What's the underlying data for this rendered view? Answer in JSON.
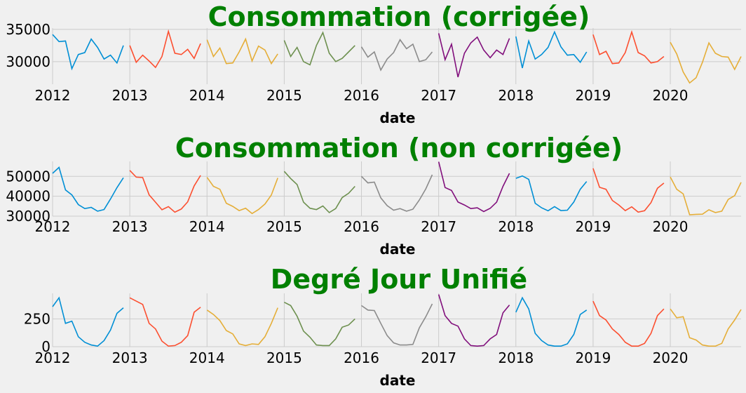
{
  "chart_data": [
    {
      "type": "line",
      "title": "Consommation (corrigée)",
      "xlabel": "date",
      "ylabel": "",
      "x_ticks": [
        "2012",
        "2013",
        "2014",
        "2015",
        "2016",
        "2017",
        "2018",
        "2019",
        "2020"
      ],
      "y_ticks": [
        30000,
        35000
      ],
      "ylim": [
        26500,
        35200
      ],
      "series": [
        {
          "year": "2012",
          "color": "#008fd5",
          "values": [
            34200,
            33100,
            33200,
            28900,
            31100,
            31400,
            33500,
            32200,
            30400,
            31000,
            29800,
            32500
          ]
        },
        {
          "year": "2013",
          "color": "#fc4f30",
          "values": [
            32500,
            29900,
            31000,
            30100,
            29100,
            30800,
            34700,
            31300,
            31100,
            31900,
            30500,
            32800
          ]
        },
        {
          "year": "2014",
          "color": "#e5ae38",
          "values": [
            33400,
            30800,
            32100,
            29700,
            29800,
            31500,
            33500,
            30100,
            32400,
            31800,
            29700,
            31200
          ]
        },
        {
          "year": "2015",
          "color": "#6d904f",
          "values": [
            33300,
            30800,
            32200,
            30000,
            29500,
            32500,
            34500,
            31300,
            30000,
            30500,
            31500,
            32500
          ]
        },
        {
          "year": "2016",
          "color": "#8b8b8b",
          "values": [
            32300,
            30700,
            31500,
            28700,
            30400,
            31400,
            33400,
            32000,
            32700,
            30000,
            30300,
            31500
          ]
        },
        {
          "year": "2017",
          "color": "#810f7c",
          "values": [
            34400,
            30300,
            32700,
            27600,
            31300,
            32900,
            33800,
            31800,
            30600,
            31800,
            31100,
            33600
          ]
        },
        {
          "year": "2018",
          "color": "#008fd5",
          "values": [
            33900,
            29000,
            33200,
            30400,
            31100,
            32200,
            34600,
            32300,
            31000,
            31100,
            29900,
            31500
          ]
        },
        {
          "year": "2019",
          "color": "#fc4f30",
          "values": [
            34200,
            31100,
            31600,
            29700,
            29800,
            31400,
            34600,
            31400,
            30900,
            29800,
            30000,
            30800
          ]
        },
        {
          "year": "2020",
          "color": "#e5ae38",
          "values": [
            33000,
            31200,
            28400,
            26700,
            27500,
            29900,
            32900,
            31300,
            30800,
            30700,
            28800,
            30800
          ]
        }
      ]
    },
    {
      "type": "line",
      "title": "Consommation (non corrigée)",
      "xlabel": "date",
      "ylabel": "",
      "x_ticks": [
        "2012",
        "2013",
        "2014",
        "2015",
        "2016",
        "2017",
        "2018",
        "2019",
        "2020"
      ],
      "y_ticks": [
        30000,
        40000,
        50000
      ],
      "ylim": [
        30000,
        57500
      ],
      "series": [
        {
          "year": "2012",
          "color": "#008fd5",
          "values": [
            51500,
            54500,
            43200,
            40700,
            35800,
            33800,
            34400,
            32500,
            33300,
            38600,
            44300,
            49300
          ]
        },
        {
          "year": "2013",
          "color": "#fc4f30",
          "values": [
            53000,
            49600,
            49400,
            40700,
            37000,
            33200,
            34800,
            32000,
            33600,
            37200,
            45200,
            50500
          ]
        },
        {
          "year": "2014",
          "color": "#e5ae38",
          "values": [
            49500,
            45000,
            43500,
            36500,
            34900,
            32800,
            34000,
            31300,
            33300,
            36100,
            40600,
            49200
          ]
        },
        {
          "year": "2015",
          "color": "#6d904f",
          "values": [
            52500,
            48900,
            45900,
            37000,
            34000,
            33300,
            35100,
            31800,
            33800,
            39300,
            41500,
            45000
          ]
        },
        {
          "year": "2016",
          "color": "#8b8b8b",
          "values": [
            50000,
            46700,
            47100,
            39200,
            35300,
            33000,
            33800,
            32500,
            33500,
            38100,
            43700,
            50800
          ]
        },
        {
          "year": "2017",
          "color": "#810f7c",
          "values": [
            57300,
            44400,
            42900,
            37100,
            35600,
            33800,
            34200,
            32300,
            33900,
            37000,
            45000,
            51500
          ]
        },
        {
          "year": "2018",
          "color": "#008fd5",
          "values": [
            49000,
            50200,
            48500,
            36500,
            34200,
            32700,
            34800,
            32800,
            33000,
            37100,
            43500,
            47400
          ]
        },
        {
          "year": "2019",
          "color": "#fc4f30",
          "values": [
            54000,
            44500,
            43500,
            37900,
            35600,
            32800,
            34700,
            32000,
            32700,
            36800,
            44000,
            46600
          ]
        },
        {
          "year": "2020",
          "color": "#e5ae38",
          "values": [
            49700,
            43500,
            41200,
            30700,
            30900,
            31000,
            33200,
            31800,
            32500,
            38400,
            40300,
            47000
          ]
        }
      ]
    },
    {
      "type": "line",
      "title": "Degré Jour Unifié",
      "xlabel": "date",
      "ylabel": "",
      "x_ticks": [
        "2012",
        "2013",
        "2014",
        "2015",
        "2016",
        "2017",
        "2018",
        "2019",
        "2020"
      ],
      "y_ticks": [
        0,
        250
      ],
      "ylim": [
        0,
        480
      ],
      "series": [
        {
          "year": "2012",
          "color": "#008fd5",
          "values": [
            360,
            440,
            210,
            230,
            90,
            40,
            15,
            5,
            55,
            150,
            300,
            350
          ]
        },
        {
          "year": "2013",
          "color": "#fc4f30",
          "values": [
            440,
            410,
            380,
            210,
            160,
            50,
            5,
            10,
            40,
            100,
            310,
            355
          ]
        },
        {
          "year": "2014",
          "color": "#e5ae38",
          "values": [
            330,
            290,
            235,
            145,
            115,
            25,
            10,
            25,
            20,
            90,
            210,
            350
          ]
        },
        {
          "year": "2015",
          "color": "#6d904f",
          "values": [
            400,
            370,
            275,
            140,
            85,
            15,
            10,
            10,
            70,
            175,
            195,
            250
          ]
        },
        {
          "year": "2016",
          "color": "#8b8b8b",
          "values": [
            370,
            330,
            325,
            210,
            100,
            35,
            15,
            15,
            20,
            170,
            270,
            385
          ]
        },
        {
          "year": "2017",
          "color": "#810f7c",
          "values": [
            470,
            280,
            210,
            185,
            70,
            10,
            5,
            10,
            70,
            110,
            305,
            375
          ]
        },
        {
          "year": "2018",
          "color": "#008fd5",
          "values": [
            310,
            440,
            340,
            120,
            55,
            15,
            5,
            5,
            25,
            110,
            290,
            330
          ]
        },
        {
          "year": "2019",
          "color": "#fc4f30",
          "values": [
            410,
            280,
            240,
            160,
            110,
            40,
            5,
            5,
            30,
            120,
            280,
            340
          ]
        },
        {
          "year": "2020",
          "color": "#e5ae38",
          "values": [
            340,
            260,
            270,
            80,
            60,
            15,
            5,
            5,
            30,
            160,
            240,
            335
          ]
        }
      ]
    }
  ]
}
